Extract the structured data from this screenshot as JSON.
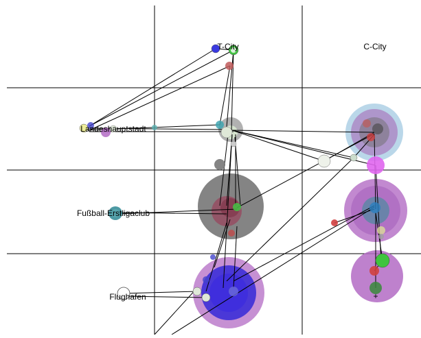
{
  "labels": {
    "t_city": "T-City",
    "c_city": "C-City",
    "landeshauptstadt": "Landeshauptstadt",
    "fussball": "Fußball-Erstligaclub",
    "flughafen": "Flughafen"
  },
  "colors": {
    "background": "#ffffff",
    "grid": "#000000",
    "edge": "#000000",
    "gray_halo": "#6e6e6e",
    "purple": "#b36bc4",
    "magenta": "#e066ee",
    "blue": "#2a22d8",
    "teal": "#3a8f9a",
    "green": "#3ec43e",
    "red": "#d04040",
    "pale_green": "#dfe8d8",
    "light_blue": "#9cc6e0"
  }
}
